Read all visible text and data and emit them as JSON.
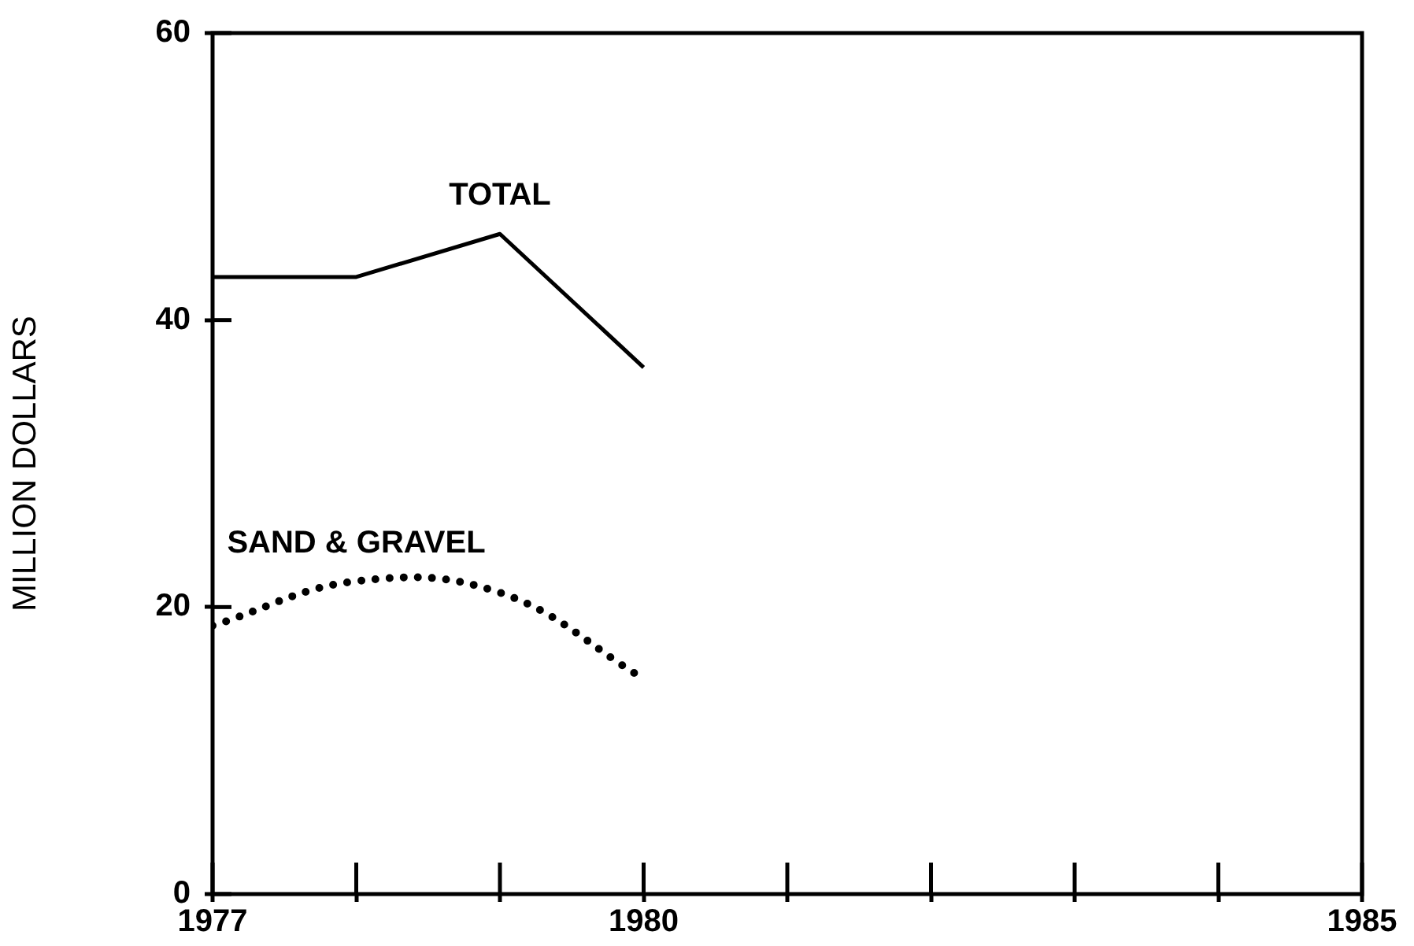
{
  "chart_data": {
    "type": "line",
    "ylabel": "MILLION DOLLARS",
    "x": [
      1977,
      1978,
      1979,
      1980
    ],
    "xlim": [
      1977,
      1985
    ],
    "xticks": [
      1977,
      {
        "value": 1978,
        "label": null
      },
      {
        "value": 1979,
        "label": null
      },
      1980,
      {
        "value": 1981,
        "label": null
      },
      {
        "value": 1982,
        "label": null
      },
      {
        "value": 1983,
        "label": null
      },
      {
        "value": 1984,
        "label": null
      },
      1985
    ],
    "ylim": [
      0,
      60
    ],
    "yticks": [
      0,
      20,
      40,
      60
    ],
    "legend": false,
    "marker": "none",
    "series": [
      {
        "name": "TOTAL",
        "color": "#000000",
        "values": [
          43,
          43,
          46,
          36.7
        ],
        "line_style": "solid"
      },
      {
        "name": "SAND & GRAVEL",
        "color": "#000000",
        "values": [
          18.7,
          21.8,
          21,
          15
        ],
        "line_style": "dotted"
      }
    ]
  }
}
